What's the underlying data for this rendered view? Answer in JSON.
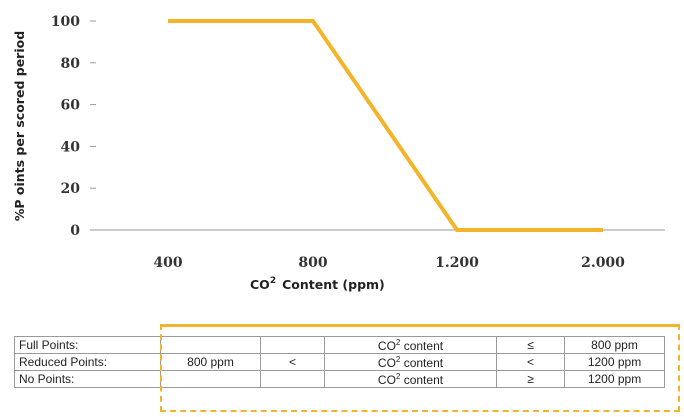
{
  "colors": {
    "line": "#f3b429",
    "axis": "#9a9a9a",
    "frame": "#f3b429"
  },
  "chart_data": {
    "type": "line",
    "x": [
      "400",
      "800",
      "1.200",
      "2.000"
    ],
    "series": [
      {
        "values": [
          100,
          100,
          0,
          0
        ]
      }
    ],
    "ylabel": "%P oints per scored period",
    "xlabel": "CO",
    "xlabel_sup": "2",
    "xlabel_rest": "Content (ppm)",
    "y_ticks": [
      "0",
      "20",
      "40",
      "60",
      "80",
      "100"
    ],
    "ylim": [
      0,
      100
    ],
    "grid": false
  },
  "table": {
    "rows": [
      {
        "label": "Full Points:",
        "low": "",
        "op1": "",
        "co2": "CO",
        "sup": "2",
        "co2_rest": " content",
        "op2": "≤",
        "high": "800 ppm"
      },
      {
        "label": "Reduced Points:",
        "low": "800 ppm",
        "op1": "<",
        "co2": "CO",
        "sup": "2",
        "co2_rest": " content",
        "op2": "<",
        "high": "1200 ppm"
      },
      {
        "label": "No Points:",
        "low": "",
        "op1": "",
        "co2": "CO",
        "sup": "2",
        "co2_rest": " content",
        "op2": "≥",
        "high": "1200 ppm"
      }
    ]
  }
}
